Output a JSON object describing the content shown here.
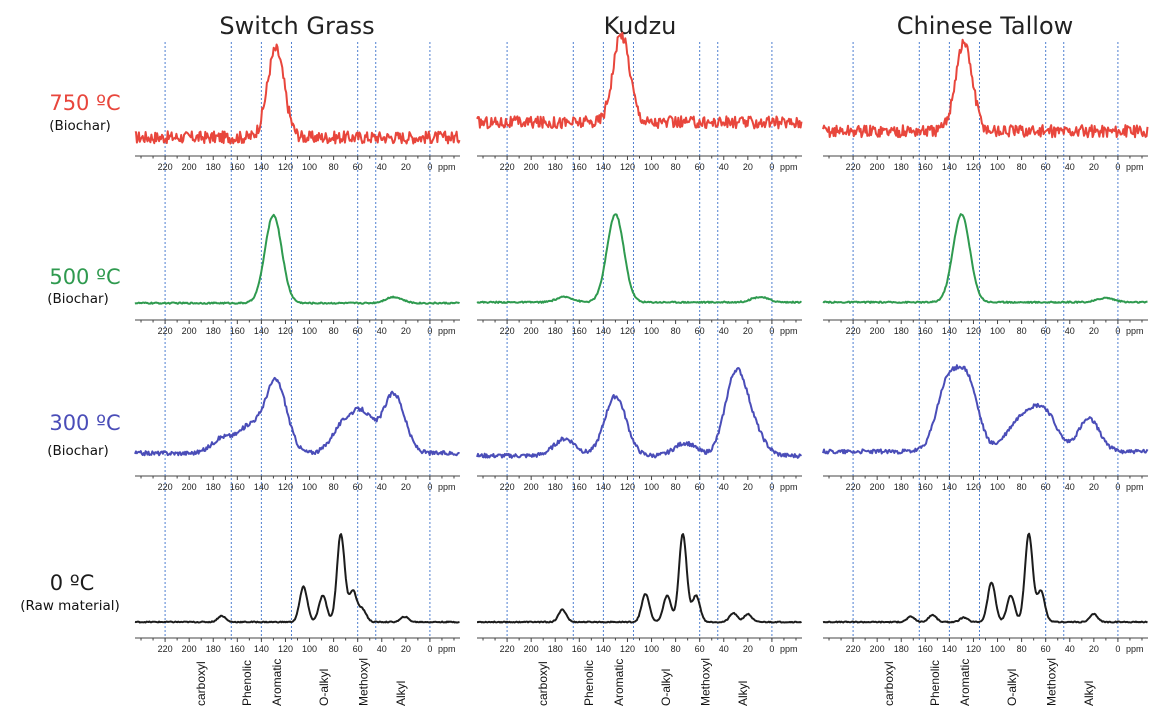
{
  "chart_data": {
    "type": "line",
    "x_unit": "ppm",
    "xlim": [
      245,
      -25
    ],
    "x_ticks": [
      220,
      200,
      180,
      160,
      140,
      120,
      100,
      80,
      60,
      40,
      20,
      0
    ],
    "x_tick_labels": [
      "220",
      "200",
      "180",
      "160",
      "140",
      "120",
      "100",
      "80",
      "60",
      "40",
      "20",
      "0"
    ],
    "x_unit_label": "ppm",
    "column_titles": [
      "Switch Grass",
      "Kudzu",
      "Chinese Tallow"
    ],
    "rows": [
      {
        "temp": "750 ºC",
        "condition": "(Biochar)",
        "color": "#e8463c"
      },
      {
        "temp": "500 ºC",
        "condition": "(Biochar)",
        "color": "#2f9a4f"
      },
      {
        "temp": "300 ºC",
        "condition": "(Biochar)",
        "color": "#4a4db8"
      },
      {
        "temp": "0 ºC",
        "condition": "(Raw material)",
        "color": "#1c1c1c"
      }
    ],
    "guides_ppm": [
      220,
      165,
      140,
      115,
      60,
      45,
      0
    ],
    "group_labels": [
      {
        "text": "carboxyl",
        "ppm": 190
      },
      {
        "text": "Phenolic",
        "ppm": 152
      },
      {
        "text": "Aromatic",
        "ppm": 127
      },
      {
        "text": "O-alkyl",
        "ppm": 88
      },
      {
        "text": "Methoxyl",
        "ppm": 55
      },
      {
        "text": "Alkyl",
        "ppm": 24
      }
    ],
    "series": [
      {
        "material": "Switch Grass",
        "condition": "750 ºC",
        "peaks": [
          {
            "ppm": 128,
            "height": 1.0
          }
        ],
        "baseline": 0.03
      },
      {
        "material": "Switch Grass",
        "condition": "500 ºC",
        "peaks": [
          {
            "ppm": 130,
            "height": 1.0
          },
          {
            "ppm": 30,
            "height": 0.07
          }
        ],
        "baseline": 0.01
      },
      {
        "material": "Switch Grass",
        "condition": "300 ºC",
        "peaks": [
          {
            "ppm": 172,
            "height": 0.18
          },
          {
            "ppm": 150,
            "height": 0.3
          },
          {
            "ppm": 128,
            "height": 0.85
          },
          {
            "ppm": 73,
            "height": 0.3
          },
          {
            "ppm": 56,
            "height": 0.45
          },
          {
            "ppm": 30,
            "height": 0.7
          }
        ],
        "baseline": 0.08
      },
      {
        "material": "Switch Grass",
        "condition": "0 ºC",
        "peaks": [
          {
            "ppm": 173,
            "height": 0.07
          },
          {
            "ppm": 105,
            "height": 0.4
          },
          {
            "ppm": 89,
            "height": 0.3
          },
          {
            "ppm": 74,
            "height": 1.0
          },
          {
            "ppm": 64,
            "height": 0.35
          },
          {
            "ppm": 56,
            "height": 0.14
          },
          {
            "ppm": 21,
            "height": 0.06
          }
        ],
        "baseline": 0.0
      },
      {
        "material": "Kudzu",
        "condition": "750 ºC",
        "peaks": [
          {
            "ppm": 125,
            "height": 1.0
          }
        ],
        "baseline": 0.2
      },
      {
        "material": "Kudzu",
        "condition": "500 ºC",
        "peaks": [
          {
            "ppm": 130,
            "height": 1.0
          },
          {
            "ppm": 172,
            "height": 0.06
          },
          {
            "ppm": 10,
            "height": 0.06
          }
        ],
        "baseline": 0.02
      },
      {
        "material": "Kudzu",
        "condition": "300 ºC",
        "peaks": [
          {
            "ppm": 172,
            "height": 0.2
          },
          {
            "ppm": 130,
            "height": 0.7
          },
          {
            "ppm": 72,
            "height": 0.15
          },
          {
            "ppm": 30,
            "height": 0.95
          },
          {
            "ppm": 15,
            "height": 0.25
          }
        ],
        "baseline": 0.05
      },
      {
        "material": "Kudzu",
        "condition": "0 ºC",
        "peaks": [
          {
            "ppm": 174,
            "height": 0.14
          },
          {
            "ppm": 105,
            "height": 0.32
          },
          {
            "ppm": 87,
            "height": 0.3
          },
          {
            "ppm": 74,
            "height": 1.0
          },
          {
            "ppm": 63,
            "height": 0.3
          },
          {
            "ppm": 32,
            "height": 0.1
          },
          {
            "ppm": 20,
            "height": 0.09
          }
        ],
        "baseline": 0.0
      },
      {
        "material": "Chinese Tallow",
        "condition": "750 ºC",
        "peaks": [
          {
            "ppm": 128,
            "height": 1.0
          }
        ],
        "baseline": 0.1
      },
      {
        "material": "Chinese Tallow",
        "condition": "500 ºC",
        "peaks": [
          {
            "ppm": 130,
            "height": 1.0
          },
          {
            "ppm": 10,
            "height": 0.05
          }
        ],
        "baseline": 0.02
      },
      {
        "material": "Chinese Tallow",
        "condition": "300 ºC",
        "peaks": [
          {
            "ppm": 142,
            "height": 0.75
          },
          {
            "ppm": 125,
            "height": 0.8
          },
          {
            "ppm": 88,
            "height": 0.2
          },
          {
            "ppm": 74,
            "height": 0.35
          },
          {
            "ppm": 59,
            "height": 0.4
          },
          {
            "ppm": 24,
            "height": 0.38
          }
        ],
        "baseline": 0.1
      },
      {
        "material": "Chinese Tallow",
        "condition": "0 ºC",
        "peaks": [
          {
            "ppm": 172,
            "height": 0.06
          },
          {
            "ppm": 154,
            "height": 0.08
          },
          {
            "ppm": 128,
            "height": 0.05
          },
          {
            "ppm": 105,
            "height": 0.45
          },
          {
            "ppm": 89,
            "height": 0.3
          },
          {
            "ppm": 74,
            "height": 1.0
          },
          {
            "ppm": 64,
            "height": 0.35
          },
          {
            "ppm": 20,
            "height": 0.09
          }
        ],
        "baseline": 0.0
      }
    ]
  }
}
